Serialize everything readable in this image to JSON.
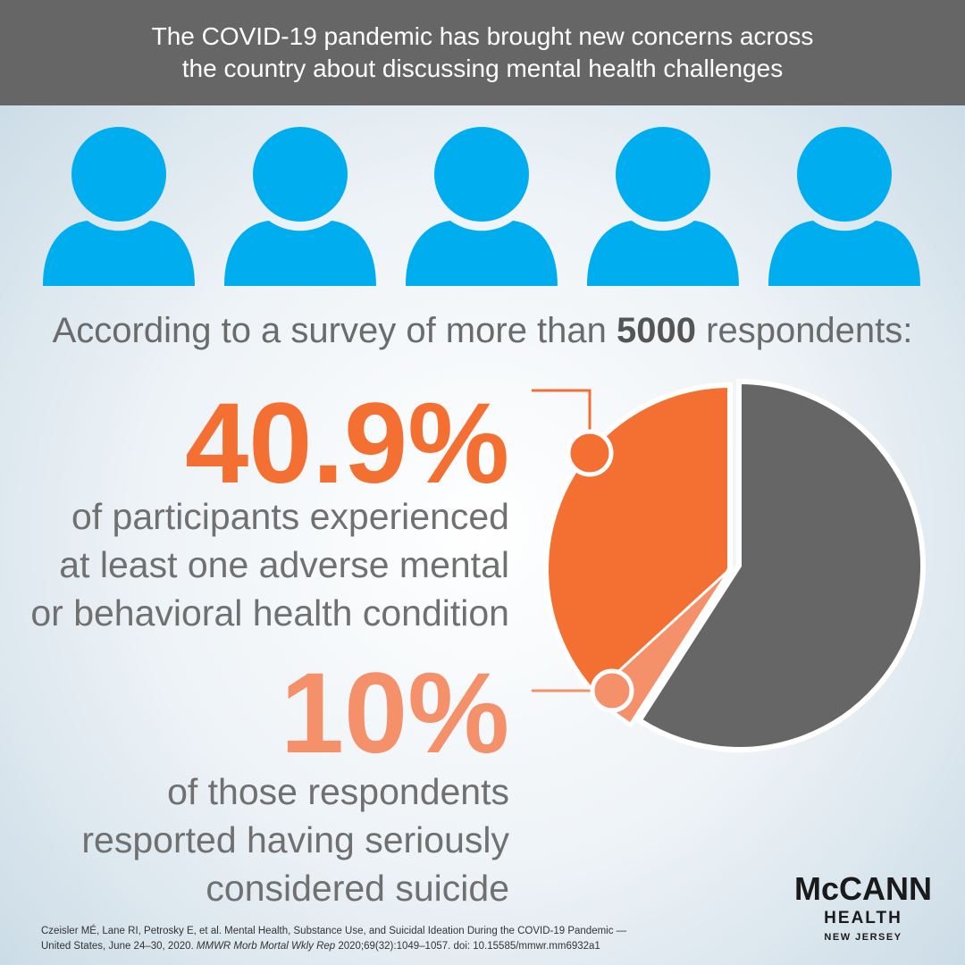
{
  "header": {
    "lines": [
      "The COVID-19 pandemic has brought new concerns across",
      "the country about discussing mental health challenges"
    ]
  },
  "survey": {
    "before": "According to a survey of more than ",
    "highlight": "5000",
    "after": " respondents:"
  },
  "stats": [
    {
      "value": 40.9,
      "label": "40.9%",
      "lines": [
        "of participants experienced",
        "at least one adverse mental",
        "or behavioral health condition"
      ]
    },
    {
      "value": 10,
      "label": "10%",
      "lines": [
        "of those respondents",
        "resported having seriously",
        "considered suicide"
      ]
    }
  ],
  "citation": {
    "line1": "Czeisler MÉ, Lane RI, Petrosky E, et al. Mental Health, Substance Use, and Suicidal Ideation During the COVID-19 Pandemic —",
    "line2": [
      "United States, June 24–30, 2020. ",
      "MMWR Morb Mortal Wkly Rep",
      " 2020;69(32):1049–1057. doi: 10.15585/mmwr.mm6932a1"
    ]
  },
  "logo": {
    "name": "McCANN",
    "sub": "HEALTH",
    "region": "NEW JERSEY"
  }
}
